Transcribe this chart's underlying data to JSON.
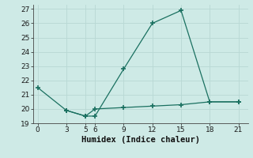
{
  "line1_x": [
    0,
    3,
    5,
    6,
    9,
    12,
    15,
    18,
    21
  ],
  "line1_y": [
    21.5,
    19.9,
    19.5,
    19.5,
    22.8,
    26.0,
    26.9,
    20.5,
    20.5
  ],
  "line2_x": [
    3,
    5,
    6,
    9,
    12,
    15,
    18,
    21
  ],
  "line2_y": [
    19.9,
    19.5,
    20.0,
    20.1,
    20.2,
    20.3,
    20.5,
    20.5
  ],
  "line_color": "#1a7060",
  "marker": "+",
  "marker_size": 4,
  "marker_lw": 1.2,
  "line_width": 0.9,
  "xlabel": "Humidex (Indice chaleur)",
  "xlim": [
    -0.5,
    22
  ],
  "ylim": [
    19,
    27.3
  ],
  "xticks": [
    0,
    3,
    5,
    6,
    9,
    12,
    15,
    18,
    21
  ],
  "yticks": [
    19,
    20,
    21,
    22,
    23,
    24,
    25,
    26,
    27
  ],
  "bg_color": "#ceeae6",
  "grid_color": "#b8d8d4",
  "tick_fontsize": 6.5,
  "xlabel_fontsize": 7.5
}
